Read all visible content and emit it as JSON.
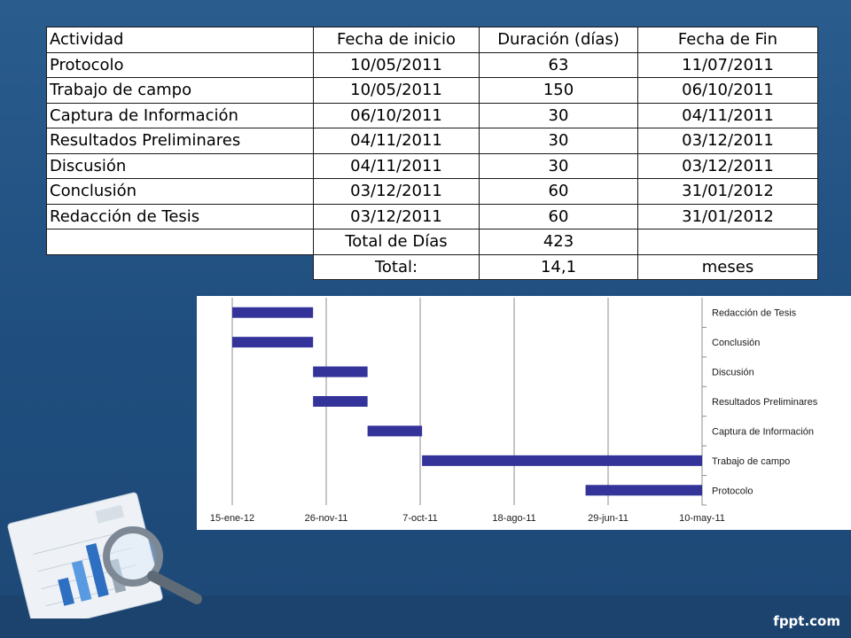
{
  "table": {
    "headers": [
      "Actividad",
      "Fecha de inicio",
      "Duración (días)",
      "Fecha de Fin"
    ],
    "rows": [
      [
        "Protocolo",
        "10/05/2011",
        "63",
        "11/07/2011"
      ],
      [
        "Trabajo de campo",
        "10/05/2011",
        "150",
        "06/10/2011"
      ],
      [
        "Captura de Información",
        "06/10/2011",
        "30",
        "04/11/2011"
      ],
      [
        "Resultados Preliminares",
        "04/11/2011",
        "30",
        "03/12/2011"
      ],
      [
        "Discusión",
        "04/11/2011",
        "30",
        "03/12/2011"
      ],
      [
        "Conclusión",
        "03/12/2011",
        "60",
        "31/01/2012"
      ],
      [
        "Redacción de Tesis",
        "03/12/2011",
        "60",
        "31/01/2012"
      ]
    ],
    "total_days_label": "Total de Días",
    "total_days_value": "423",
    "total_label": "Total:",
    "total_value": "14,1",
    "total_unit": "meses"
  },
  "chart_data": {
    "type": "bar",
    "orientation": "horizontal-gantt",
    "x_axis": "dates, reversed (10-may-11 on the right, 15-ene-12 on the left)",
    "xlim": [
      "2011-05-10",
      "2012-01-15"
    ],
    "x_tick_labels": [
      "15-ene-12",
      "26-nov-11",
      "7-oct-11",
      "18-ago-11",
      "29-jun-11",
      "10-may-11"
    ],
    "x_tick_dates": [
      "2012-01-15",
      "2011-11-26",
      "2011-10-07",
      "2011-08-18",
      "2011-06-29",
      "2011-05-10"
    ],
    "categories": [
      "Redacción de Tesis",
      "Conclusión",
      "Discusión",
      "Resultados Preliminares",
      "Captura de Información",
      "Trabajo de campo",
      "Protocolo"
    ],
    "series": [
      {
        "start": [
          "2011-12-03",
          "2011-12-03",
          "2011-11-04",
          "2011-11-04",
          "2011-10-06",
          "2011-05-10",
          "2011-05-10"
        ],
        "end": [
          "2012-01-31",
          "2012-01-31",
          "2011-12-03",
          "2011-12-03",
          "2011-11-04",
          "2011-10-06",
          "2011-07-11"
        ]
      }
    ],
    "grid": true,
    "legend": "none",
    "bar_color": "#33339a"
  },
  "brand": "fppt.com"
}
